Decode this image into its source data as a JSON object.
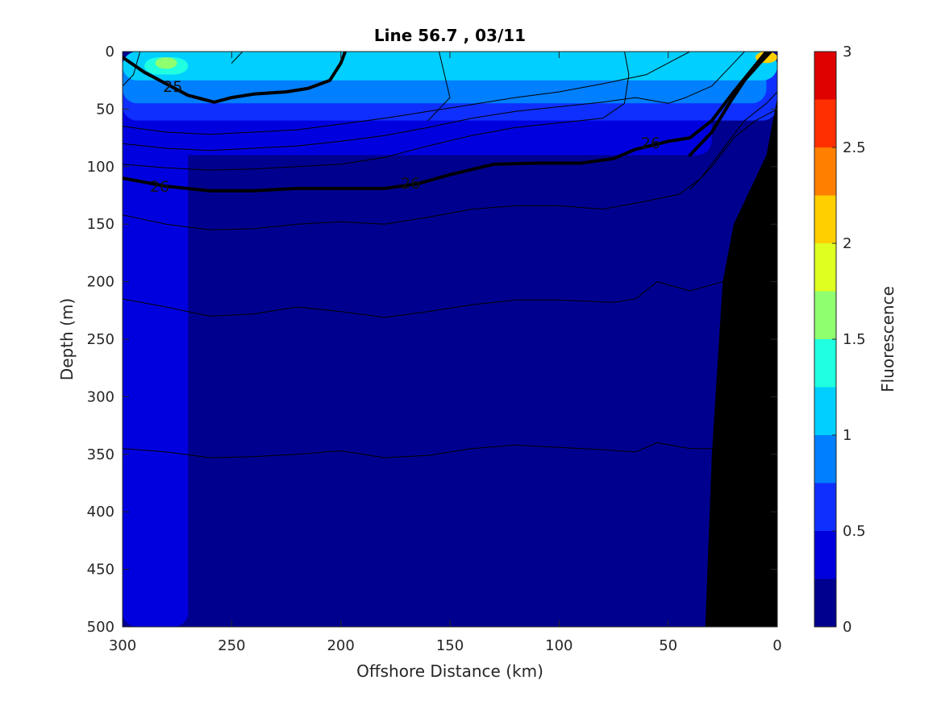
{
  "chart_data": {
    "type": "heatmap",
    "title": "Line 56.7 , 03/11",
    "xlabel": "Offshore Distance (km)",
    "ylabel": "Depth (m)",
    "xlim": [
      300,
      0
    ],
    "ylim": [
      500,
      0
    ],
    "x_reversed": true,
    "y_reversed": true,
    "x_ticks": [
      "300",
      "250",
      "200",
      "150",
      "100",
      "50",
      "0"
    ],
    "y_ticks": [
      "0",
      "50",
      "100",
      "150",
      "200",
      "250",
      "300",
      "350",
      "400",
      "450",
      "500"
    ],
    "colorbar": {
      "label": "Fluorescence",
      "range": [
        0,
        3
      ],
      "step": 0.25,
      "ticks": [
        "0",
        "0.5",
        "1",
        "1.5",
        "2",
        "2.5",
        "3"
      ],
      "colors": [
        "#00008f",
        "#0000df",
        "#0f2fff",
        "#007fff",
        "#00cfff",
        "#20ffdf",
        "#8fff70",
        "#dfff20",
        "#ffcf00",
        "#ff7f00",
        "#ff2f00",
        "#df0000"
      ]
    },
    "background_level_color": "#00008f",
    "fluorescence_regions": [
      {
        "level": 0.25,
        "depth_top": 0,
        "depth_bottom": 500,
        "x_from": 300,
        "x_to": 270
      },
      {
        "level": 0.25,
        "depth_top": 50,
        "depth_bottom": 90,
        "x_from": 300,
        "x_to": 30
      },
      {
        "level": 0.5,
        "depth_top": 0,
        "depth_bottom": 60,
        "x_from": 300,
        "x_to": 0
      },
      {
        "level": 0.75,
        "depth_top": 0,
        "depth_bottom": 45,
        "x_from": 300,
        "x_to": 5
      },
      {
        "level": 1.0,
        "depth_top": 0,
        "depth_bottom": 25,
        "x_from": 300,
        "x_to": 0
      },
      {
        "level": 1.25,
        "depth_top": 5,
        "depth_bottom": 20,
        "x_from": 290,
        "x_to": 270
      },
      {
        "level": 1.5,
        "depth_top": 5,
        "depth_bottom": 15,
        "x_from": 285,
        "x_to": 275
      },
      {
        "level": 2.0,
        "depth_top": 0,
        "depth_bottom": 10,
        "x_from": 10,
        "x_to": 0
      }
    ],
    "bathymetry": {
      "color": "#000000",
      "points": [
        [
          33,
          500
        ],
        [
          30,
          350
        ],
        [
          25,
          200
        ],
        [
          20,
          150
        ],
        [
          10,
          110
        ],
        [
          5,
          90
        ],
        [
          0,
          40
        ],
        [
          0,
          500
        ]
      ]
    },
    "contour_lines": [
      {
        "level": "25",
        "labeled": true,
        "bold": true,
        "points": [
          [
            300,
            5
          ],
          [
            290,
            18
          ],
          [
            280,
            28
          ],
          [
            270,
            38
          ],
          [
            258,
            44
          ],
          [
            250,
            40
          ],
          [
            240,
            37
          ],
          [
            225,
            35
          ],
          [
            215,
            32
          ],
          [
            205,
            25
          ],
          [
            200,
            10
          ],
          [
            198,
            0
          ]
        ]
      },
      {
        "level": "25 (nearshore)",
        "labeled": false,
        "bold": true,
        "points": [
          [
            40,
            90
          ],
          [
            30,
            70
          ],
          [
            22,
            45
          ],
          [
            15,
            25
          ],
          [
            8,
            10
          ],
          [
            3,
            0
          ]
        ]
      },
      {
        "level": "26",
        "labeled": true,
        "bold": true,
        "points": [
          [
            300,
            110
          ],
          [
            280,
            117
          ],
          [
            260,
            121
          ],
          [
            240,
            121
          ],
          [
            220,
            119
          ],
          [
            200,
            119
          ],
          [
            180,
            119
          ],
          [
            165,
            115
          ],
          [
            150,
            107
          ],
          [
            130,
            98
          ],
          [
            110,
            97
          ],
          [
            90,
            97
          ],
          [
            75,
            93
          ],
          [
            65,
            85
          ],
          [
            50,
            78
          ],
          [
            40,
            75
          ],
          [
            30,
            60
          ],
          [
            20,
            35
          ],
          [
            5,
            0
          ]
        ]
      },
      {
        "level": "thin-1",
        "labeled": false,
        "bold": false,
        "points": [
          [
            300,
            65
          ],
          [
            280,
            70
          ],
          [
            260,
            72
          ],
          [
            240,
            70
          ],
          [
            220,
            68
          ],
          [
            200,
            63
          ],
          [
            180,
            58
          ],
          [
            160,
            52
          ],
          [
            140,
            46
          ],
          [
            120,
            40
          ],
          [
            100,
            35
          ],
          [
            80,
            28
          ],
          [
            60,
            20
          ],
          [
            45,
            5
          ],
          [
            40,
            0
          ]
        ]
      },
      {
        "level": "thin-2",
        "labeled": false,
        "bold": false,
        "points": [
          [
            300,
            80
          ],
          [
            280,
            84
          ],
          [
            260,
            86
          ],
          [
            240,
            84
          ],
          [
            220,
            82
          ],
          [
            200,
            78
          ],
          [
            180,
            73
          ],
          [
            160,
            66
          ],
          [
            140,
            58
          ],
          [
            120,
            52
          ],
          [
            100,
            48
          ],
          [
            80,
            44
          ],
          [
            65,
            40
          ],
          [
            50,
            45
          ],
          [
            42,
            40
          ],
          [
            30,
            30
          ],
          [
            20,
            10
          ],
          [
            15,
            0
          ]
        ]
      },
      {
        "level": "thin-3",
        "labeled": false,
        "bold": false,
        "points": [
          [
            300,
            98
          ],
          [
            280,
            101
          ],
          [
            260,
            103
          ],
          [
            240,
            102
          ],
          [
            220,
            100
          ],
          [
            200,
            98
          ],
          [
            180,
            92
          ],
          [
            160,
            82
          ],
          [
            140,
            73
          ],
          [
            120,
            66
          ],
          [
            100,
            62
          ],
          [
            80,
            58
          ],
          [
            70,
            45
          ],
          [
            68,
            20
          ],
          [
            70,
            0
          ]
        ]
      },
      {
        "level": "thin-4",
        "labeled": false,
        "bold": false,
        "points": [
          [
            300,
            142
          ],
          [
            280,
            150
          ],
          [
            260,
            155
          ],
          [
            240,
            154
          ],
          [
            220,
            150
          ],
          [
            200,
            148
          ],
          [
            180,
            150
          ],
          [
            160,
            144
          ],
          [
            140,
            137
          ],
          [
            120,
            134
          ],
          [
            100,
            134
          ],
          [
            80,
            137
          ],
          [
            60,
            130
          ],
          [
            45,
            124
          ],
          [
            35,
            110
          ],
          [
            25,
            85
          ],
          [
            15,
            60
          ],
          [
            5,
            45
          ],
          [
            0,
            35
          ]
        ]
      },
      {
        "level": "thin-5",
        "labeled": false,
        "bold": false,
        "points": [
          [
            300,
            215
          ],
          [
            280,
            222
          ],
          [
            260,
            230
          ],
          [
            240,
            228
          ],
          [
            220,
            222
          ],
          [
            200,
            226
          ],
          [
            180,
            231
          ],
          [
            160,
            226
          ],
          [
            140,
            220
          ],
          [
            120,
            216
          ],
          [
            100,
            216
          ],
          [
            75,
            218
          ],
          [
            65,
            215
          ],
          [
            55,
            200
          ],
          [
            40,
            208
          ],
          [
            25,
            200
          ]
        ]
      },
      {
        "level": "thin-6",
        "labeled": false,
        "bold": false,
        "points": [
          [
            300,
            345
          ],
          [
            280,
            348
          ],
          [
            260,
            353
          ],
          [
            240,
            352
          ],
          [
            220,
            350
          ],
          [
            200,
            347
          ],
          [
            180,
            353
          ],
          [
            160,
            351
          ],
          [
            140,
            345
          ],
          [
            120,
            342
          ],
          [
            100,
            344
          ],
          [
            80,
            346
          ],
          [
            65,
            348
          ],
          [
            55,
            340
          ],
          [
            40,
            345
          ],
          [
            30,
            345
          ]
        ]
      },
      {
        "level": "thin-7 (nearshore)",
        "labeled": false,
        "bold": false,
        "points": [
          [
            40,
            120
          ],
          [
            30,
            100
          ],
          [
            20,
            75
          ],
          [
            10,
            60
          ],
          [
            0,
            50
          ]
        ]
      },
      {
        "level": "thin-8 (left)",
        "labeled": false,
        "bold": false,
        "points": [
          [
            300,
            30
          ],
          [
            295,
            20
          ],
          [
            292,
            0
          ]
        ]
      },
      {
        "level": "thin-9 (left)",
        "labeled": false,
        "bold": false,
        "points": [
          [
            250,
            10
          ],
          [
            245,
            0
          ]
        ]
      },
      {
        "level": "thin-10",
        "labeled": false,
        "bold": false,
        "points": [
          [
            160,
            60
          ],
          [
            150,
            40
          ],
          [
            155,
            0
          ]
        ]
      }
    ],
    "contour_labels": [
      {
        "text": "25",
        "x": 277,
        "depth": 30
      },
      {
        "text": "26",
        "x": 283,
        "depth": 117
      },
      {
        "text": "26",
        "x": 168,
        "depth": 114
      },
      {
        "text": "26",
        "x": 58,
        "depth": 79
      }
    ]
  }
}
